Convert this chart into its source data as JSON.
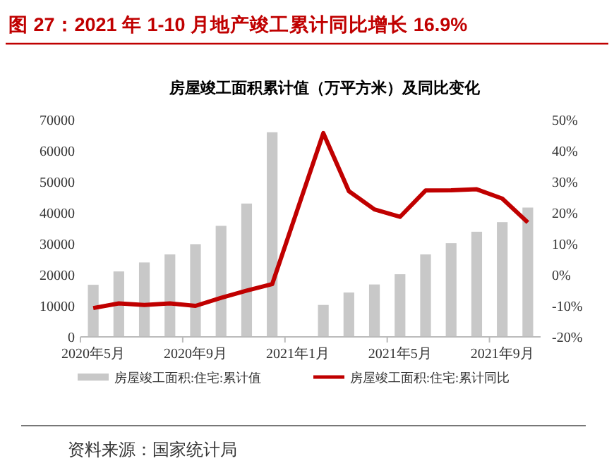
{
  "chart_data": {
    "type": "bar",
    "title": "图 27：2021 年 1-10 月地产竣工累计同比增长 16.9%",
    "subtitle": "房屋竣工面积累计值（万平方米）及同比变化",
    "categories": [
      "2020年5月",
      null,
      null,
      null,
      "2020年9月",
      null,
      null,
      null,
      "2021年1月",
      null,
      null,
      null,
      "2021年5月",
      null,
      null,
      null,
      "2021年9月",
      null
    ],
    "series": [
      {
        "name": "房屋竣工面积:住宅:累计值",
        "color": "#c8c8c8",
        "values": [
          16800,
          21100,
          24000,
          26600,
          29900,
          35800,
          43000,
          66000,
          null,
          10300,
          14300,
          16900,
          20200,
          26600,
          30200,
          33900,
          37000,
          41700
        ]
      },
      {
        "name": "房屋竣工面积:住宅:累计同比",
        "type": "line",
        "axis": "y2",
        "color": "#c00000",
        "values": [
          -10.7,
          -9.2,
          -9.7,
          -9.2,
          -10,
          -7.4,
          -5.1,
          -3,
          null,
          45.7,
          27,
          21.1,
          18.7,
          27.2,
          27.3,
          27.6,
          24.6,
          16.9
        ]
      }
    ],
    "ylim": [
      0,
      70000
    ],
    "yticks": [
      0,
      10000,
      20000,
      30000,
      40000,
      50000,
      60000,
      70000
    ],
    "y2lim": [
      -20,
      50
    ],
    "y2ticks": [
      {
        "value": -20,
        "label": "-20%"
      },
      {
        "value": -10,
        "label": "-10%"
      },
      {
        "value": 0,
        "label": "0%"
      },
      {
        "value": 10,
        "label": "10%"
      },
      {
        "value": 20,
        "label": "20%"
      },
      {
        "value": 30,
        "label": "30%"
      },
      {
        "value": 40,
        "label": "40%"
      },
      {
        "value": 50,
        "label": "50%"
      }
    ],
    "grid": false,
    "legend": "bottom",
    "annotations": [
      "资料来源：国家统计局"
    ]
  }
}
